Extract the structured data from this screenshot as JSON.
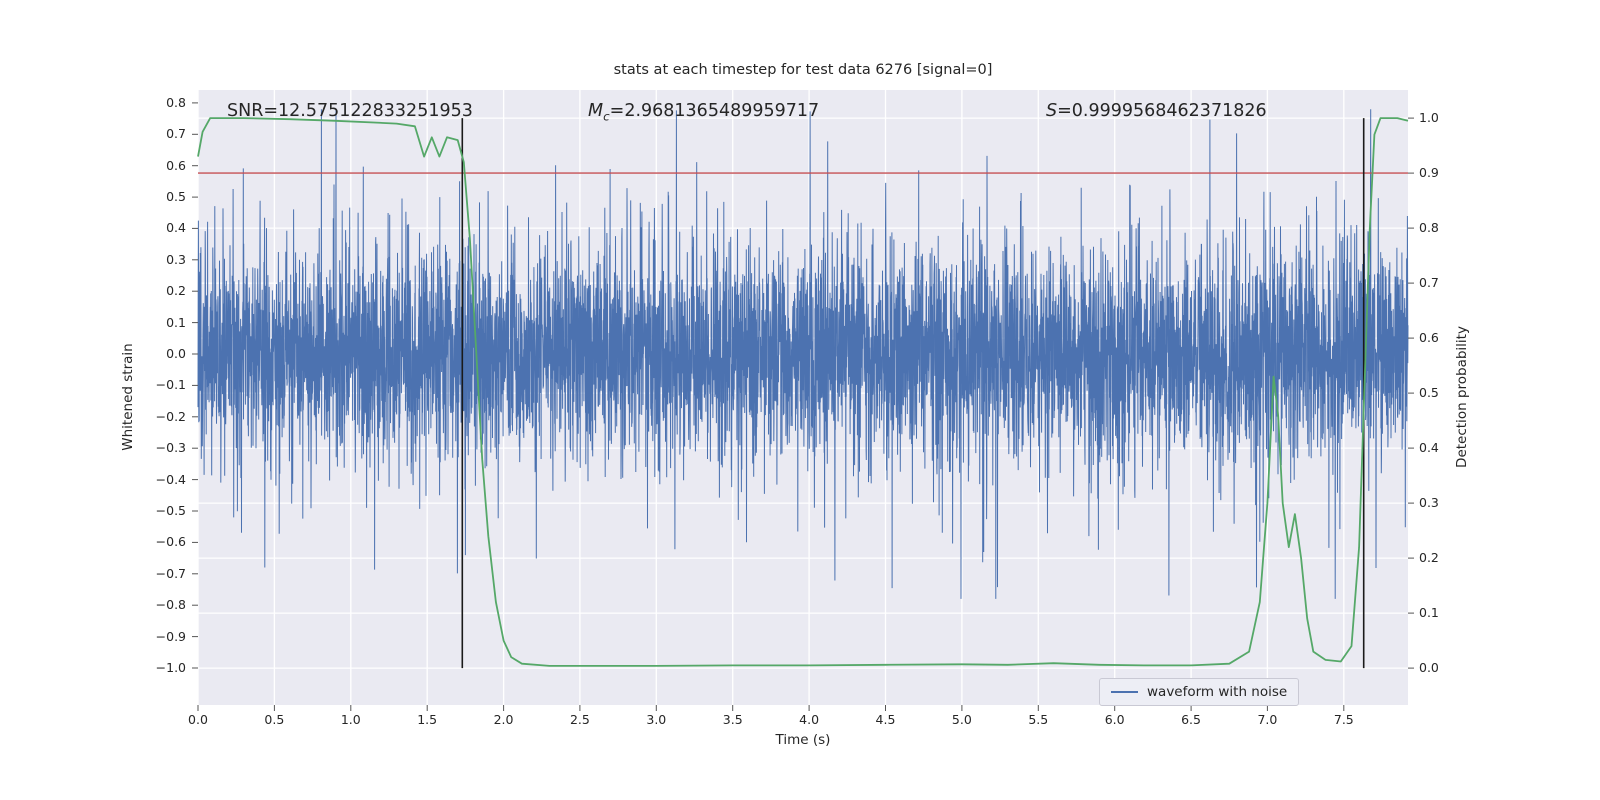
{
  "figure": {
    "background": "#ffffff",
    "axes_background": "#eaeaf2",
    "grid_color": "#ffffff",
    "text_color": "#262626",
    "tick_color": "#555555"
  },
  "chart_data": {
    "type": "line",
    "title": "stats at each timestep for test data 6276 [signal=0]",
    "xlabel": "Time (s)",
    "ylabel_left": "Whitened strain",
    "ylabel_right": "Detection probability",
    "xlim": [
      0,
      7.92
    ],
    "ylim_left": [
      -1.118,
      0.841
    ],
    "ylim_right": [
      -0.067,
      1.051
    ],
    "grid": true,
    "x_ticks": [
      0.0,
      0.5,
      1.0,
      1.5,
      2.0,
      2.5,
      3.0,
      3.5,
      4.0,
      4.5,
      5.0,
      5.5,
      6.0,
      6.5,
      7.0,
      7.5
    ],
    "y_ticks_left": [
      0.8,
      0.7,
      0.6,
      0.5,
      0.4,
      0.3,
      0.2,
      0.1,
      0.0,
      -0.1,
      -0.2,
      -0.3,
      -0.4,
      -0.5,
      -0.6,
      -0.7,
      -0.8,
      -0.9,
      -1.0
    ],
    "y_ticks_right": [
      1.0,
      0.9,
      0.8,
      0.7,
      0.6,
      0.5,
      0.4,
      0.3,
      0.2,
      0.1,
      0.0
    ],
    "annotations": [
      {
        "name": "SNR",
        "label": "SNR",
        "sub": "",
        "italic": false,
        "value": "12.575122833251953"
      },
      {
        "name": "chirp-mass",
        "label": "M",
        "sub": "c",
        "italic": true,
        "value": "2.9681365489959717"
      },
      {
        "name": "S",
        "label": "S",
        "sub": "",
        "italic": true,
        "value": "0.9999568462371826"
      }
    ],
    "threshold_line": {
      "axis": "right",
      "value": 0.9,
      "color": "#c44e52"
    },
    "vlines": {
      "color": "#1a1a1a",
      "positions": [
        1.73,
        7.63
      ],
      "span_axis": "right",
      "span": [
        0.0,
        1.0
      ]
    },
    "series": [
      {
        "name": "waveform with noise",
        "axis": "left",
        "color": "#4c72b0",
        "type": "noise",
        "generator": {
          "seed": 6276,
          "n": 6200,
          "sigma": 0.155,
          "sigma_tail": 0.28,
          "tail_fraction": 0.15,
          "clip": 0.78
        }
      },
      {
        "name": "detection probability",
        "axis": "right",
        "color": "#55a868",
        "type": "line",
        "points": [
          [
            0.0,
            0.93
          ],
          [
            0.03,
            0.975
          ],
          [
            0.08,
            1.0
          ],
          [
            0.3,
            1.0
          ],
          [
            0.6,
            0.998
          ],
          [
            0.9,
            0.995
          ],
          [
            1.15,
            0.992
          ],
          [
            1.3,
            0.99
          ],
          [
            1.42,
            0.985
          ],
          [
            1.48,
            0.93
          ],
          [
            1.53,
            0.965
          ],
          [
            1.58,
            0.93
          ],
          [
            1.63,
            0.965
          ],
          [
            1.7,
            0.96
          ],
          [
            1.74,
            0.92
          ],
          [
            1.78,
            0.78
          ],
          [
            1.82,
            0.58
          ],
          [
            1.86,
            0.38
          ],
          [
            1.9,
            0.24
          ],
          [
            1.95,
            0.12
          ],
          [
            2.0,
            0.05
          ],
          [
            2.05,
            0.02
          ],
          [
            2.12,
            0.008
          ],
          [
            2.3,
            0.004
          ],
          [
            2.6,
            0.004
          ],
          [
            3.0,
            0.004
          ],
          [
            3.5,
            0.005
          ],
          [
            4.0,
            0.005
          ],
          [
            4.5,
            0.006
          ],
          [
            5.0,
            0.007
          ],
          [
            5.3,
            0.006
          ],
          [
            5.6,
            0.009
          ],
          [
            5.9,
            0.006
          ],
          [
            6.2,
            0.005
          ],
          [
            6.5,
            0.005
          ],
          [
            6.75,
            0.008
          ],
          [
            6.88,
            0.03
          ],
          [
            6.95,
            0.12
          ],
          [
            7.0,
            0.3
          ],
          [
            7.04,
            0.53
          ],
          [
            7.07,
            0.46
          ],
          [
            7.1,
            0.3
          ],
          [
            7.14,
            0.22
          ],
          [
            7.18,
            0.28
          ],
          [
            7.22,
            0.2
          ],
          [
            7.26,
            0.09
          ],
          [
            7.3,
            0.03
          ],
          [
            7.38,
            0.015
          ],
          [
            7.48,
            0.012
          ],
          [
            7.55,
            0.04
          ],
          [
            7.6,
            0.22
          ],
          [
            7.64,
            0.55
          ],
          [
            7.67,
            0.8
          ],
          [
            7.7,
            0.97
          ],
          [
            7.74,
            1.0
          ],
          [
            7.85,
            1.0
          ],
          [
            7.92,
            0.995
          ]
        ]
      }
    ],
    "legend": {
      "position": "lower right",
      "entries": [
        {
          "label": "waveform with noise",
          "color": "#4c72b0"
        }
      ]
    }
  }
}
